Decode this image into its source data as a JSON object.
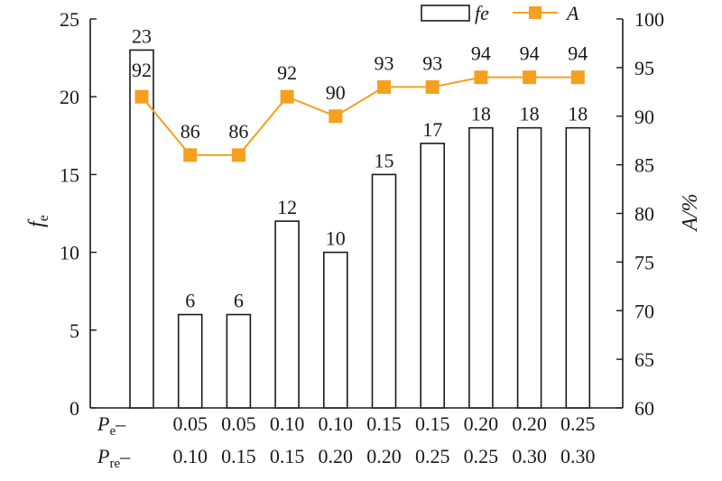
{
  "chart_data": {
    "type": "bar+line",
    "categories": [
      {
        "pe": "",
        "pre": ""
      },
      {
        "pe": "0.05",
        "pre": "0.10"
      },
      {
        "pe": "0.05",
        "pre": "0.15"
      },
      {
        "pe": "0.10",
        "pre": "0.15"
      },
      {
        "pe": "0.10",
        "pre": "0.20"
      },
      {
        "pe": "0.15",
        "pre": "0.20"
      },
      {
        "pe": "0.15",
        "pre": "0.25"
      },
      {
        "pe": "0.20",
        "pre": "0.25"
      },
      {
        "pe": "0.20",
        "pre": "0.30"
      },
      {
        "pe": "0.25",
        "pre": "0.30"
      }
    ],
    "row_labels": {
      "pe": {
        "main": "P",
        "sub": "e",
        "suffix": "–"
      },
      "pre": {
        "main": "P",
        "sub": "re",
        "suffix": "–"
      }
    },
    "series": [
      {
        "name": "fe",
        "axis": "left",
        "type": "bar",
        "values": [
          23,
          6,
          6,
          12,
          10,
          15,
          17,
          18,
          18,
          18
        ]
      },
      {
        "name": "A",
        "axis": "right",
        "type": "line",
        "values": [
          92,
          86,
          86,
          92,
          90,
          93,
          93,
          94,
          94,
          94
        ]
      }
    ],
    "left_axis": {
      "label_main": "f",
      "label_sub": "e",
      "ylim": [
        0,
        25
      ],
      "ticks": [
        0,
        5,
        10,
        15,
        20,
        25
      ]
    },
    "right_axis": {
      "label": "A/%",
      "ylim": [
        60,
        100
      ],
      "ticks": [
        60,
        65,
        70,
        75,
        80,
        85,
        90,
        95,
        100
      ]
    },
    "legend": {
      "placement": "top-right",
      "items": [
        {
          "name": "fe",
          "type": "bar"
        },
        {
          "name": "A",
          "type": "line"
        }
      ]
    },
    "grid": false,
    "colors": {
      "bar_fill": "#ffffff",
      "bar_stroke": "#1a1a1a",
      "line": "#f5a01e",
      "marker": "#f5a01e",
      "axis": "#1a1a1a"
    }
  }
}
